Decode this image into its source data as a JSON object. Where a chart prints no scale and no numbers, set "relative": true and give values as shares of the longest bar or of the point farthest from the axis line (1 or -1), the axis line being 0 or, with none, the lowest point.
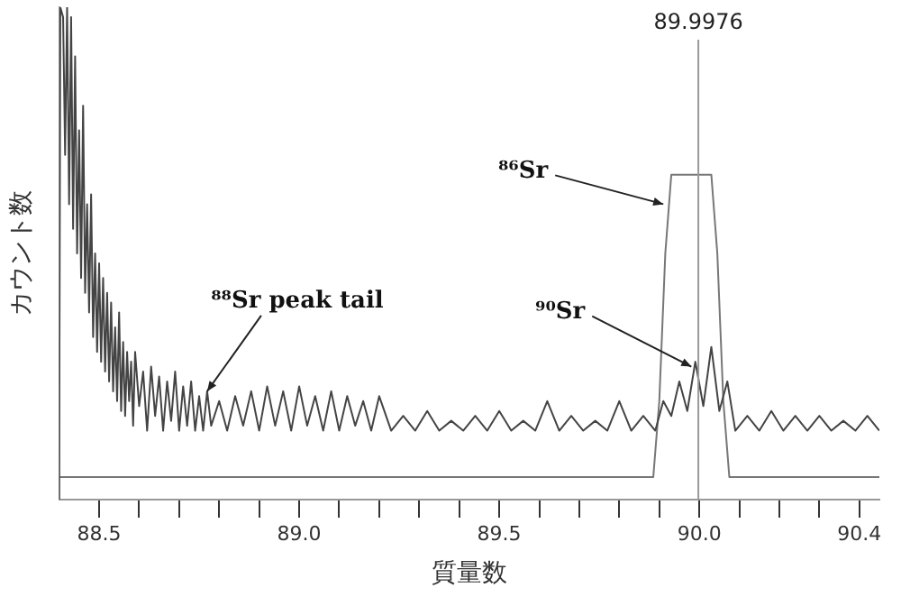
{
  "chart_data": {
    "type": "line",
    "xlabel": "質量数",
    "ylabel": "カウント数",
    "relative": true,
    "xlim": [
      88.4,
      90.45
    ],
    "xticks": [
      {
        "value": 88.5,
        "label": "88.5"
      },
      {
        "value": 88.6,
        "label": null
      },
      {
        "value": 88.7,
        "label": null
      },
      {
        "value": 88.8,
        "label": null
      },
      {
        "value": 88.9,
        "label": null
      },
      {
        "value": 89.0,
        "label": "89.0"
      },
      {
        "value": 89.1,
        "label": null
      },
      {
        "value": 89.2,
        "label": null
      },
      {
        "value": 89.3,
        "label": null
      },
      {
        "value": 89.4,
        "label": null
      },
      {
        "value": 89.5,
        "label": "89.5"
      },
      {
        "value": 89.6,
        "label": null
      },
      {
        "value": 89.7,
        "label": null
      },
      {
        "value": 89.8,
        "label": null
      },
      {
        "value": 89.9,
        "label": null
      },
      {
        "value": 90.0,
        "label": "90.0"
      },
      {
        "value": 90.1,
        "label": null
      },
      {
        "value": 90.2,
        "label": null
      },
      {
        "value": 90.3,
        "label": null
      },
      {
        "value": 90.4,
        "label": "90.4"
      }
    ],
    "grid": false,
    "legend": false,
    "marker": "none",
    "line_style": "solid",
    "series": [
      {
        "color": "#444444",
        "x": [
          88.4,
          88.403,
          88.41,
          88.415,
          88.42,
          88.425,
          88.43,
          88.435,
          88.44,
          88.445,
          88.45,
          88.455,
          88.46,
          88.465,
          88.47,
          88.475,
          88.48,
          88.485,
          88.49,
          88.495,
          88.5,
          88.505,
          88.51,
          88.515,
          88.52,
          88.525,
          88.53,
          88.535,
          88.54,
          88.545,
          88.55,
          88.555,
          88.56,
          88.565,
          88.57,
          88.575,
          88.58,
          88.585,
          88.59,
          88.6,
          88.61,
          88.62,
          88.63,
          88.64,
          88.65,
          88.66,
          88.67,
          88.68,
          88.69,
          88.7,
          88.71,
          88.72,
          88.73,
          88.74,
          88.75,
          88.76,
          88.77,
          88.78,
          88.8,
          88.82,
          88.84,
          88.86,
          88.88,
          88.9,
          88.92,
          88.94,
          88.96,
          88.98,
          89.0,
          89.02,
          89.04,
          89.06,
          89.08,
          89.1,
          89.12,
          89.14,
          89.16,
          89.18,
          89.2,
          89.23,
          89.26,
          89.29,
          89.32,
          89.35,
          89.38,
          89.41,
          89.44,
          89.47,
          89.5,
          89.53,
          89.56,
          89.59,
          89.62,
          89.65,
          89.68,
          89.71,
          89.74,
          89.77,
          89.8,
          89.83,
          89.86,
          89.89,
          89.91,
          89.93,
          89.95,
          89.97,
          89.99,
          90.01,
          90.03,
          90.05,
          90.07,
          90.09,
          90.12,
          90.15,
          90.18,
          90.21,
          90.24,
          90.27,
          90.3,
          90.33,
          90.36,
          90.39,
          90.42,
          90.45
        ],
        "values": [
          0.0,
          1.0,
          0.98,
          0.7,
          1.0,
          0.6,
          0.98,
          0.55,
          0.9,
          0.5,
          0.75,
          0.45,
          0.8,
          0.42,
          0.6,
          0.38,
          0.62,
          0.33,
          0.5,
          0.3,
          0.48,
          0.28,
          0.45,
          0.26,
          0.42,
          0.24,
          0.4,
          0.22,
          0.35,
          0.2,
          0.38,
          0.18,
          0.32,
          0.17,
          0.3,
          0.2,
          0.28,
          0.15,
          0.3,
          0.19,
          0.26,
          0.14,
          0.27,
          0.17,
          0.25,
          0.14,
          0.24,
          0.16,
          0.26,
          0.14,
          0.23,
          0.15,
          0.24,
          0.14,
          0.21,
          0.14,
          0.22,
          0.15,
          0.2,
          0.14,
          0.21,
          0.15,
          0.22,
          0.14,
          0.23,
          0.15,
          0.22,
          0.14,
          0.23,
          0.15,
          0.21,
          0.14,
          0.22,
          0.14,
          0.21,
          0.15,
          0.2,
          0.14,
          0.21,
          0.14,
          0.17,
          0.14,
          0.18,
          0.14,
          0.16,
          0.14,
          0.17,
          0.14,
          0.18,
          0.14,
          0.16,
          0.14,
          0.2,
          0.14,
          0.17,
          0.14,
          0.16,
          0.14,
          0.2,
          0.14,
          0.17,
          0.14,
          0.2,
          0.17,
          0.24,
          0.18,
          0.28,
          0.19,
          0.31,
          0.18,
          0.24,
          0.14,
          0.17,
          0.14,
          0.18,
          0.14,
          0.17,
          0.14,
          0.17,
          0.14,
          0.16,
          0.14,
          0.17,
          0.14
        ]
      },
      {
        "color": "#777777",
        "x": [
          88.4,
          89.885,
          89.9,
          89.915,
          89.93,
          90.03,
          90.045,
          90.06,
          90.075,
          90.45
        ],
        "values": [
          0.046,
          0.046,
          0.2,
          0.5,
          0.66,
          0.66,
          0.5,
          0.2,
          0.046,
          0.046
        ]
      }
    ],
    "ref_lines": [
      {
        "axis": "x",
        "value": 89.9976,
        "label": "89.9976",
        "color": "#999999"
      }
    ],
    "annotations": [
      {
        "text": "⁸⁸Sr peak tail",
        "x": 88.77,
        "y": 0.22
      },
      {
        "text": "⁸⁶Sr",
        "x": 89.91,
        "y": 0.6
      },
      {
        "text": "⁹⁰Sr",
        "x": 89.98,
        "y": 0.27
      }
    ]
  }
}
